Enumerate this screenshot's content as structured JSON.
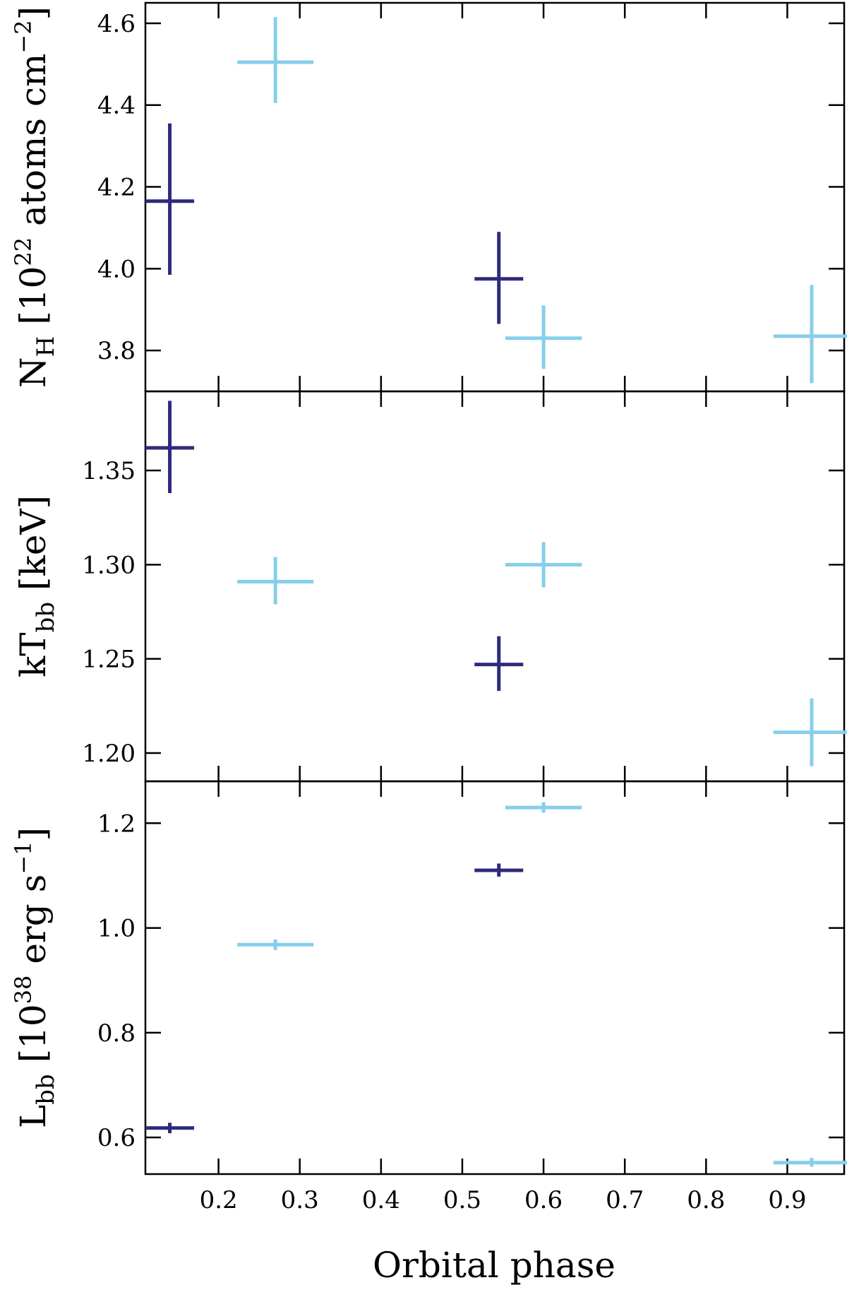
{
  "chart_data": {
    "type": "scatter",
    "xlabel": "Orbital phase",
    "xlim": [
      0.11,
      0.97
    ],
    "xticks": [
      0.2,
      0.3,
      0.4,
      0.5,
      0.6,
      0.7,
      0.8,
      0.9
    ],
    "xtick_labels": [
      "0.2",
      "0.3",
      "0.4",
      "0.5",
      "0.6",
      "0.7",
      "0.8",
      "0.9"
    ],
    "colors": {
      "dark": "#2e2a7d",
      "light": "#87ceeb"
    },
    "grid": false,
    "legend": "none",
    "panels": [
      {
        "ylabel": {
          "main": "N",
          "sub": "H",
          "post": " [10",
          "sup": "22",
          "unit": " atoms cm",
          "sup2": "−2",
          "end": "]"
        },
        "ylim": [
          3.7,
          4.65
        ],
        "yticks": [
          3.8,
          4.0,
          4.2,
          4.4,
          4.6
        ],
        "ytick_labels": [
          "3.8",
          "4.0",
          "4.2",
          "4.4",
          "4.6"
        ],
        "series": [
          {
            "color": "dark",
            "points": [
              {
                "x": 0.14,
                "xerr": 0.03,
                "y": 4.165,
                "ylo": 3.985,
                "yhi": 4.355
              },
              {
                "x": 0.545,
                "xerr": 0.03,
                "y": 3.975,
                "ylo": 3.865,
                "yhi": 4.09
              }
            ]
          },
          {
            "color": "light",
            "points": [
              {
                "x": 0.27,
                "xerr": 0.047,
                "y": 4.505,
                "ylo": 4.405,
                "yhi": 4.615
              },
              {
                "x": 0.6,
                "xerr": 0.047,
                "y": 3.83,
                "ylo": 3.755,
                "yhi": 3.91
              },
              {
                "x": 0.93,
                "xerr": 0.047,
                "y": 3.835,
                "ylo": 3.72,
                "yhi": 3.96
              }
            ]
          }
        ]
      },
      {
        "ylabel": {
          "main": "kT",
          "sub": "bb",
          "post": " [keV]",
          "sup": "",
          "unit": "",
          "sup2": "",
          "end": ""
        },
        "ylim": [
          1.185,
          1.392
        ],
        "yticks": [
          1.2,
          1.25,
          1.3,
          1.35
        ],
        "ytick_labels": [
          "1.20",
          "1.25",
          "1.30",
          "1.35"
        ],
        "series": [
          {
            "color": "dark",
            "points": [
              {
                "x": 0.14,
                "xerr": 0.03,
                "y": 1.362,
                "ylo": 1.338,
                "yhi": 1.387
              },
              {
                "x": 0.545,
                "xerr": 0.03,
                "y": 1.247,
                "ylo": 1.233,
                "yhi": 1.262
              }
            ]
          },
          {
            "color": "light",
            "points": [
              {
                "x": 0.27,
                "xerr": 0.047,
                "y": 1.291,
                "ylo": 1.279,
                "yhi": 1.304
              },
              {
                "x": 0.6,
                "xerr": 0.047,
                "y": 1.3,
                "ylo": 1.288,
                "yhi": 1.312
              },
              {
                "x": 0.93,
                "xerr": 0.047,
                "y": 1.211,
                "ylo": 1.193,
                "yhi": 1.229
              }
            ]
          }
        ]
      },
      {
        "ylabel": {
          "main": "L",
          "sub": "bb",
          "post": " [10",
          "sup": "38",
          "unit": " erg s",
          "sup2": "−1",
          "end": "]"
        },
        "ylim": [
          0.53,
          1.28
        ],
        "yticks": [
          0.6,
          0.8,
          1.0,
          1.2
        ],
        "ytick_labels": [
          "0.6",
          "0.8",
          "1.0",
          "1.2"
        ],
        "series": [
          {
            "color": "dark",
            "points": [
              {
                "x": 0.14,
                "xerr": 0.03,
                "y": 0.618,
                "ylo": 0.608,
                "yhi": 0.628
              },
              {
                "x": 0.545,
                "xerr": 0.03,
                "y": 1.11,
                "ylo": 1.098,
                "yhi": 1.123
              }
            ]
          },
          {
            "color": "light",
            "points": [
              {
                "x": 0.27,
                "xerr": 0.047,
                "y": 0.968,
                "ylo": 0.958,
                "yhi": 0.978
              },
              {
                "x": 0.6,
                "xerr": 0.047,
                "y": 1.23,
                "ylo": 1.22,
                "yhi": 1.24
              },
              {
                "x": 0.93,
                "xerr": 0.047,
                "y": 0.552,
                "ylo": 0.544,
                "yhi": 0.561
              }
            ]
          }
        ]
      }
    ]
  }
}
